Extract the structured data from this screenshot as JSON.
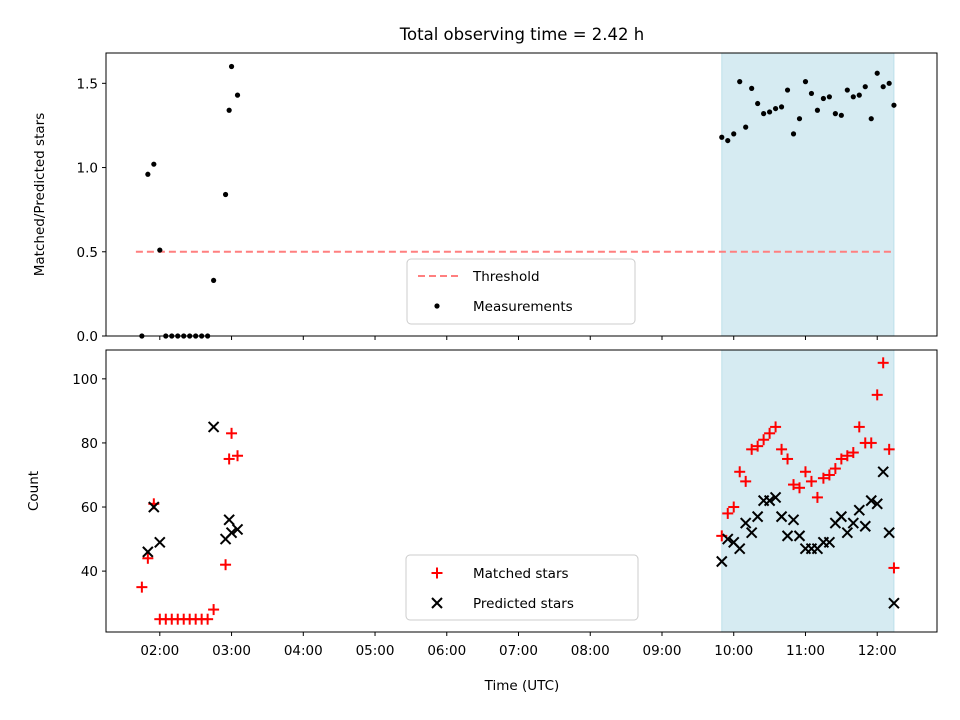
{
  "chart_data": [
    {
      "type": "scatter",
      "title": "Total observing time = 2.42 h",
      "ylabel": "Matched/Predicted stars",
      "xlabel": "",
      "xlim": [
        "01:15",
        "12:50"
      ],
      "ylim": [
        0,
        1.68
      ],
      "yticks": [
        "0.0",
        "0.5",
        "1.0",
        "1.5"
      ],
      "shaded_region": {
        "start": "09:50",
        "end": "12:14",
        "color": "#add8e6"
      },
      "threshold": {
        "name": "Threshold",
        "y": 0.5,
        "x_start": "01:40",
        "x_end": "12:14",
        "color": "#ff7f7f",
        "style": "dashed"
      },
      "legend_position": "lower center",
      "series": [
        {
          "name": "Measurements",
          "marker": "dot",
          "color": "#000000",
          "points": [
            [
              "01:45",
              0.0
            ],
            [
              "01:50",
              0.96
            ],
            [
              "01:55",
              1.02
            ],
            [
              "02:00",
              0.51
            ],
            [
              "02:05",
              0.0
            ],
            [
              "02:10",
              0.0
            ],
            [
              "02:15",
              0.0
            ],
            [
              "02:20",
              0.0
            ],
            [
              "02:25",
              0.0
            ],
            [
              "02:30",
              0.0
            ],
            [
              "02:35",
              0.0
            ],
            [
              "02:40",
              0.0
            ],
            [
              "02:45",
              0.33
            ],
            [
              "02:55",
              0.84
            ],
            [
              "02:58",
              1.34
            ],
            [
              "03:00",
              1.6
            ],
            [
              "03:05",
              1.43
            ],
            [
              "09:50",
              1.18
            ],
            [
              "09:55",
              1.16
            ],
            [
              "10:00",
              1.2
            ],
            [
              "10:05",
              1.51
            ],
            [
              "10:10",
              1.24
            ],
            [
              "10:15",
              1.47
            ],
            [
              "10:20",
              1.38
            ],
            [
              "10:25",
              1.32
            ],
            [
              "10:30",
              1.33
            ],
            [
              "10:35",
              1.35
            ],
            [
              "10:40",
              1.36
            ],
            [
              "10:45",
              1.46
            ],
            [
              "10:50",
              1.2
            ],
            [
              "10:55",
              1.29
            ],
            [
              "11:00",
              1.51
            ],
            [
              "11:05",
              1.44
            ],
            [
              "11:10",
              1.34
            ],
            [
              "11:15",
              1.41
            ],
            [
              "11:20",
              1.42
            ],
            [
              "11:25",
              1.32
            ],
            [
              "11:30",
              1.31
            ],
            [
              "11:35",
              1.46
            ],
            [
              "11:40",
              1.42
            ],
            [
              "11:45",
              1.43
            ],
            [
              "11:50",
              1.48
            ],
            [
              "11:55",
              1.29
            ],
            [
              "12:00",
              1.56
            ],
            [
              "12:05",
              1.48
            ],
            [
              "12:10",
              1.5
            ],
            [
              "12:14",
              1.37
            ]
          ]
        }
      ]
    },
    {
      "type": "scatter",
      "title": "",
      "ylabel": "Count",
      "xlabel": "Time (UTC)",
      "xlim": [
        "01:15",
        "12:50"
      ],
      "ylim": [
        21,
        109
      ],
      "yticks": [
        "40",
        "60",
        "80",
        "100"
      ],
      "xticks": [
        "02:00",
        "03:00",
        "04:00",
        "05:00",
        "06:00",
        "07:00",
        "08:00",
        "09:00",
        "10:00",
        "11:00",
        "12:00"
      ],
      "shaded_region": {
        "start": "09:50",
        "end": "12:14",
        "color": "#add8e6"
      },
      "legend_position": "lower center",
      "series": [
        {
          "name": "Matched stars",
          "marker": "plus",
          "color": "#ff0000",
          "points": [
            [
              "01:45",
              35
            ],
            [
              "01:50",
              44
            ],
            [
              "01:55",
              61
            ],
            [
              "02:00",
              25
            ],
            [
              "02:05",
              25
            ],
            [
              "02:10",
              25
            ],
            [
              "02:15",
              25
            ],
            [
              "02:20",
              25
            ],
            [
              "02:25",
              25
            ],
            [
              "02:30",
              25
            ],
            [
              "02:35",
              25
            ],
            [
              "02:40",
              25
            ],
            [
              "02:45",
              28
            ],
            [
              "02:55",
              42
            ],
            [
              "02:58",
              75
            ],
            [
              "03:00",
              83
            ],
            [
              "03:05",
              76
            ],
            [
              "09:50",
              51
            ],
            [
              "09:55",
              58
            ],
            [
              "10:00",
              60
            ],
            [
              "10:05",
              71
            ],
            [
              "10:10",
              68
            ],
            [
              "10:15",
              78
            ],
            [
              "10:20",
              79
            ],
            [
              "10:25",
              81
            ],
            [
              "10:30",
              83
            ],
            [
              "10:35",
              85
            ],
            [
              "10:40",
              78
            ],
            [
              "10:45",
              75
            ],
            [
              "10:50",
              67
            ],
            [
              "10:55",
              66
            ],
            [
              "11:00",
              71
            ],
            [
              "11:05",
              68
            ],
            [
              "11:10",
              63
            ],
            [
              "11:15",
              69
            ],
            [
              "11:20",
              70
            ],
            [
              "11:25",
              72
            ],
            [
              "11:30",
              75
            ],
            [
              "11:35",
              76
            ],
            [
              "11:40",
              77
            ],
            [
              "11:45",
              85
            ],
            [
              "11:50",
              80
            ],
            [
              "11:55",
              80
            ],
            [
              "12:00",
              95
            ],
            [
              "12:05",
              105
            ],
            [
              "12:10",
              78
            ],
            [
              "12:14",
              41
            ]
          ]
        },
        {
          "name": "Predicted stars",
          "marker": "x",
          "color": "#000000",
          "points": [
            [
              "01:50",
              46
            ],
            [
              "01:55",
              60
            ],
            [
              "02:00",
              49
            ],
            [
              "02:45",
              85
            ],
            [
              "02:55",
              50
            ],
            [
              "02:58",
              56
            ],
            [
              "03:00",
              52
            ],
            [
              "03:05",
              53
            ],
            [
              "09:50",
              43
            ],
            [
              "09:55",
              50
            ],
            [
              "10:00",
              49
            ],
            [
              "10:05",
              47
            ],
            [
              "10:10",
              55
            ],
            [
              "10:15",
              52
            ],
            [
              "10:20",
              57
            ],
            [
              "10:25",
              62
            ],
            [
              "10:30",
              62
            ],
            [
              "10:35",
              63
            ],
            [
              "10:40",
              57
            ],
            [
              "10:45",
              51
            ],
            [
              "10:50",
              56
            ],
            [
              "10:55",
              51
            ],
            [
              "11:00",
              47
            ],
            [
              "11:05",
              47
            ],
            [
              "11:10",
              47
            ],
            [
              "11:15",
              49
            ],
            [
              "11:20",
              49
            ],
            [
              "11:25",
              55
            ],
            [
              "11:30",
              57
            ],
            [
              "11:35",
              52
            ],
            [
              "11:40",
              55
            ],
            [
              "11:45",
              59
            ],
            [
              "11:50",
              54
            ],
            [
              "11:55",
              62
            ],
            [
              "12:00",
              61
            ],
            [
              "12:05",
              71
            ],
            [
              "12:10",
              52
            ],
            [
              "12:14",
              30
            ]
          ]
        }
      ]
    }
  ]
}
